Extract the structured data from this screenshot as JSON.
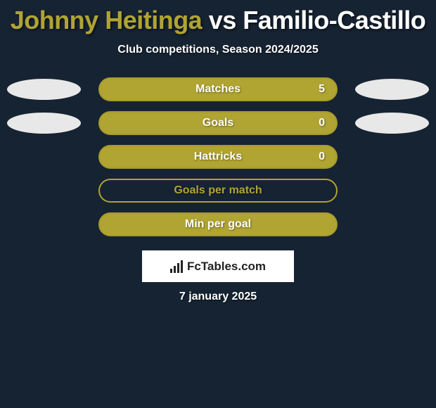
{
  "header": {
    "player1": "Johnny Heitinga",
    "vs": " vs ",
    "player2": "Familio-Castillo",
    "subtitle": "Club competitions, Season 2024/2025"
  },
  "stats": [
    {
      "label": "Matches",
      "value": "5",
      "style": "fill",
      "showEllipses": true
    },
    {
      "label": "Goals",
      "value": "0",
      "style": "fill",
      "showEllipses": true
    },
    {
      "label": "Hattricks",
      "value": "0",
      "style": "fill",
      "showEllipses": false
    },
    {
      "label": "Goals per match",
      "value": "",
      "style": "outline",
      "showEllipses": false
    },
    {
      "label": "Min per goal",
      "value": "",
      "style": "fill",
      "showEllipses": false
    }
  ],
  "logo": {
    "text": "FcTables.com"
  },
  "date": "7 january 2025",
  "colors": {
    "background": "#162332",
    "accent": "#b0a432",
    "white": "#ffffff",
    "ellipse": "#e8e8e8"
  }
}
